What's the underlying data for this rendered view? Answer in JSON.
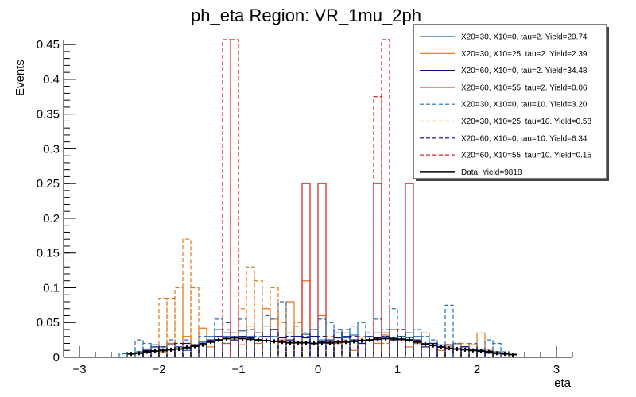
{
  "chart_data": {
    "type": "histogram",
    "title": "ph_eta Region: VR_1mu_2ph",
    "xlabel": "eta",
    "ylabel": "Events",
    "xlim": [
      -3.2,
      3.2
    ],
    "ylim": [
      0,
      0.457
    ],
    "x_ticks": [
      -3,
      -2,
      -1,
      0,
      1,
      2,
      3
    ],
    "y_ticks": [
      0,
      0.05,
      0.1,
      0.15,
      0.2,
      0.25,
      0.3,
      0.35,
      0.4,
      0.45
    ],
    "y_tick_labels": [
      "0",
      "0.05",
      "0.1",
      "0.15",
      "0.2",
      "0.25",
      "0.3",
      "0.35",
      "0.4",
      "0.45"
    ],
    "bin_width": 0.1,
    "series": [
      {
        "name": "X20=30, X10=0, tau=2. Yield=20.74",
        "color": "#1f6fb4",
        "style": "solid",
        "bins": [
          [
            -2.3,
            0.008
          ],
          [
            -2.2,
            0.012
          ],
          [
            -2.1,
            0.018
          ],
          [
            -2.0,
            0.015
          ],
          [
            -1.9,
            0.02
          ],
          [
            -1.8,
            0.012
          ],
          [
            -1.7,
            0.01
          ],
          [
            -1.6,
            0.016
          ],
          [
            -1.5,
            0.022
          ],
          [
            -1.4,
            0.03
          ],
          [
            -1.3,
            0.04
          ],
          [
            -1.2,
            0.03
          ],
          [
            -1.1,
            0.03
          ],
          [
            -1.0,
            0.038
          ],
          [
            -0.9,
            0.03
          ],
          [
            -0.8,
            0.025
          ],
          [
            -0.7,
            0.045
          ],
          [
            -0.6,
            0.03
          ],
          [
            -0.5,
            0.025
          ],
          [
            -0.4,
            0.035
          ],
          [
            -0.3,
            0.03
          ],
          [
            -0.2,
            0.033
          ],
          [
            -0.1,
            0.03
          ],
          [
            0.0,
            0.025
          ],
          [
            0.1,
            0.02
          ],
          [
            0.2,
            0.035
          ],
          [
            0.3,
            0.028
          ],
          [
            0.4,
            0.032
          ],
          [
            0.5,
            0.025
          ],
          [
            0.6,
            0.03
          ],
          [
            0.7,
            0.035
          ],
          [
            0.8,
            0.03
          ],
          [
            0.9,
            0.04
          ],
          [
            1.0,
            0.03
          ],
          [
            1.1,
            0.028
          ],
          [
            1.2,
            0.03
          ],
          [
            1.3,
            0.02
          ],
          [
            1.4,
            0.02
          ],
          [
            1.5,
            0.018
          ],
          [
            1.6,
            0.012
          ],
          [
            1.7,
            0.018
          ],
          [
            1.8,
            0.012
          ],
          [
            1.9,
            0.01
          ],
          [
            2.0,
            0.01
          ],
          [
            2.1,
            0.006
          ],
          [
            2.2,
            0.008
          ]
        ]
      },
      {
        "name": "X20=30, X10=25, tau=2. Yield=2.39",
        "color": "#e8731a",
        "style": "solid",
        "bins": [
          [
            -2.2,
            0.01
          ],
          [
            -2.1,
            0.012
          ],
          [
            -2.0,
            0.008
          ],
          [
            -1.9,
            0.02
          ],
          [
            -1.8,
            0.012
          ],
          [
            -1.7,
            0.03
          ],
          [
            -1.6,
            0.018
          ],
          [
            -1.5,
            0.042
          ],
          [
            -1.4,
            0.015
          ],
          [
            -1.3,
            0.025
          ],
          [
            -1.2,
            0.02
          ],
          [
            -1.1,
            0.035
          ],
          [
            -1.0,
            0.018
          ],
          [
            -0.9,
            0.045
          ],
          [
            -0.8,
            0.02
          ],
          [
            -0.7,
            0.07
          ],
          [
            -0.6,
            0.055
          ],
          [
            -0.5,
            0.025
          ],
          [
            -0.4,
            0.08
          ],
          [
            -0.3,
            0.045
          ],
          [
            -0.2,
            0.11
          ],
          [
            -0.1,
            0.04
          ],
          [
            0.0,
            0.06
          ],
          [
            0.1,
            0.022
          ],
          [
            0.2,
            0.02
          ],
          [
            0.3,
            0.035
          ],
          [
            0.4,
            0.01
          ],
          [
            0.5,
            0.025
          ],
          [
            0.6,
            0.03
          ],
          [
            0.7,
            0.02
          ],
          [
            0.8,
            0.032
          ],
          [
            0.9,
            0.04
          ],
          [
            1.0,
            0.025
          ],
          [
            1.1,
            0.015
          ],
          [
            1.2,
            0.02
          ],
          [
            1.3,
            0.035
          ],
          [
            1.4,
            0.012
          ],
          [
            1.5,
            0.01
          ],
          [
            1.6,
            0.016
          ],
          [
            1.7,
            0.02
          ],
          [
            1.8,
            0.015
          ],
          [
            1.9,
            0.018
          ],
          [
            2.0,
            0.035
          ],
          [
            2.1,
            0.01
          ],
          [
            2.2,
            0.005
          ]
        ]
      },
      {
        "name": "X20=60, X10=0, tau=2. Yield=34.48",
        "color": "#0a0a80",
        "style": "solid",
        "bins": [
          [
            -2.3,
            0.006
          ],
          [
            -2.2,
            0.01
          ],
          [
            -2.1,
            0.015
          ],
          [
            -2.0,
            0.012
          ],
          [
            -1.9,
            0.018
          ],
          [
            -1.8,
            0.015
          ],
          [
            -1.7,
            0.02
          ],
          [
            -1.6,
            0.018
          ],
          [
            -1.5,
            0.02
          ],
          [
            -1.4,
            0.025
          ],
          [
            -1.3,
            0.03
          ],
          [
            -1.2,
            0.035
          ],
          [
            -1.1,
            0.025
          ],
          [
            -1.0,
            0.03
          ],
          [
            -0.9,
            0.028
          ],
          [
            -0.8,
            0.035
          ],
          [
            -0.7,
            0.03
          ],
          [
            -0.6,
            0.04
          ],
          [
            -0.5,
            0.028
          ],
          [
            -0.4,
            0.025
          ],
          [
            -0.3,
            0.03
          ],
          [
            -0.2,
            0.028
          ],
          [
            -0.1,
            0.03
          ],
          [
            0.0,
            0.022
          ],
          [
            0.1,
            0.025
          ],
          [
            0.2,
            0.028
          ],
          [
            0.3,
            0.03
          ],
          [
            0.4,
            0.025
          ],
          [
            0.5,
            0.02
          ],
          [
            0.6,
            0.03
          ],
          [
            0.7,
            0.028
          ],
          [
            0.8,
            0.035
          ],
          [
            0.9,
            0.025
          ],
          [
            1.0,
            0.03
          ],
          [
            1.1,
            0.035
          ],
          [
            1.2,
            0.025
          ],
          [
            1.3,
            0.015
          ],
          [
            1.4,
            0.02
          ],
          [
            1.5,
            0.015
          ],
          [
            1.6,
            0.018
          ],
          [
            1.7,
            0.012
          ],
          [
            1.8,
            0.015
          ],
          [
            1.9,
            0.012
          ],
          [
            2.0,
            0.01
          ],
          [
            2.1,
            0.008
          ],
          [
            2.2,
            0.006
          ]
        ]
      },
      {
        "name": "X20=60, X10=55, tau=2. Yield=0.06",
        "color": "#d81e1e",
        "style": "solid",
        "bins": [
          [
            -0.2,
            0.25
          ],
          [
            0.0,
            0.25
          ],
          [
            0.7,
            0.25
          ],
          [
            1.1,
            0.25
          ]
        ]
      },
      {
        "name": "X20=30, X10=0, tau=10. Yield=3.20",
        "color": "#1f6fb4",
        "style": "dashed",
        "bins": [
          [
            -2.5,
            0.005
          ],
          [
            -2.3,
            0.025
          ],
          [
            -2.2,
            0.02
          ],
          [
            -2.1,
            0.012
          ],
          [
            -2.0,
            0.01
          ],
          [
            -1.9,
            0.025
          ],
          [
            -1.8,
            0.015
          ],
          [
            -1.7,
            0.025
          ],
          [
            -1.6,
            0.018
          ],
          [
            -1.5,
            0.03
          ],
          [
            -1.4,
            0.025
          ],
          [
            -1.3,
            0.055
          ],
          [
            -1.2,
            0.02
          ],
          [
            -1.1,
            0.035
          ],
          [
            -1.0,
            0.055
          ],
          [
            -0.9,
            0.04
          ],
          [
            -0.8,
            0.03
          ],
          [
            -0.7,
            0.06
          ],
          [
            -0.6,
            0.055
          ],
          [
            -0.5,
            0.08
          ],
          [
            -0.4,
            0.03
          ],
          [
            -0.3,
            0.045
          ],
          [
            -0.2,
            0.03
          ],
          [
            -0.1,
            0.04
          ],
          [
            0.0,
            0.055
          ],
          [
            0.1,
            0.05
          ],
          [
            0.2,
            0.035
          ],
          [
            0.3,
            0.04
          ],
          [
            0.4,
            0.045
          ],
          [
            0.5,
            0.05
          ],
          [
            0.6,
            0.03
          ],
          [
            0.7,
            0.055
          ],
          [
            0.8,
            0.04
          ],
          [
            0.9,
            0.07
          ],
          [
            1.0,
            0.03
          ],
          [
            1.1,
            0.035
          ],
          [
            1.2,
            0.04
          ],
          [
            1.3,
            0.03
          ],
          [
            1.4,
            0.025
          ],
          [
            1.5,
            0.015
          ],
          [
            1.6,
            0.075
          ],
          [
            1.7,
            0.02
          ],
          [
            1.8,
            0.012
          ],
          [
            1.9,
            0.02
          ],
          [
            2.0,
            0.01
          ],
          [
            2.1,
            0.025
          ],
          [
            2.2,
            0.02
          ],
          [
            2.3,
            0.008
          ]
        ]
      },
      {
        "name": "X20=30, X10=25, tau=10. Yield=0.58",
        "color": "#e8731a",
        "style": "dashed",
        "bins": [
          [
            -2.0,
            0.085
          ],
          [
            -1.9,
            0.085
          ],
          [
            -1.8,
            0.1
          ],
          [
            -1.7,
            0.17
          ],
          [
            -1.6,
            0.1
          ],
          [
            -1.2,
            0.04
          ],
          [
            -1.0,
            0.07
          ],
          [
            -0.9,
            0.13
          ],
          [
            -0.8,
            0.11
          ],
          [
            -0.6,
            0.1
          ],
          [
            -0.5,
            0.05
          ],
          [
            -0.3,
            0.05
          ],
          [
            0.1,
            0.03
          ],
          [
            0.3,
            0.025
          ],
          [
            0.5,
            0.03
          ],
          [
            0.8,
            0.02
          ],
          [
            1.2,
            0.02
          ],
          [
            1.5,
            0.015
          ],
          [
            1.8,
            0.02
          ]
        ]
      },
      {
        "name": "X20=60, X10=0, tau=10. Yield=6.34",
        "color": "#0a0a80",
        "style": "dashed",
        "bins": [
          [
            -2.2,
            0.01
          ],
          [
            -2.0,
            0.015
          ],
          [
            -1.8,
            0.02
          ],
          [
            -1.6,
            0.018
          ],
          [
            -1.4,
            0.025
          ],
          [
            -1.2,
            0.05
          ],
          [
            -1.0,
            0.03
          ],
          [
            -0.8,
            0.035
          ],
          [
            -0.6,
            0.04
          ],
          [
            -0.4,
            0.03
          ],
          [
            -0.2,
            0.035
          ],
          [
            0.0,
            0.03
          ],
          [
            0.2,
            0.04
          ],
          [
            0.4,
            0.03
          ],
          [
            0.6,
            0.035
          ],
          [
            0.8,
            0.03
          ],
          [
            1.0,
            0.04
          ],
          [
            1.2,
            0.025
          ],
          [
            1.4,
            0.02
          ],
          [
            1.6,
            0.018
          ],
          [
            1.8,
            0.015
          ],
          [
            2.0,
            0.012
          ]
        ]
      },
      {
        "name": "X20=60, X10=55, tau=10. Yield=0.15",
        "color": "#d81e1e",
        "style": "dashed",
        "bins": [
          [
            -1.2,
            0.457
          ],
          [
            -1.1,
            0.457
          ],
          [
            0.7,
            0.375
          ],
          [
            0.8,
            0.457
          ]
        ]
      }
    ],
    "data_series": {
      "name": "Data. Yield=9818",
      "color": "#000000",
      "points": [
        [
          -2.35,
          0.005
        ],
        [
          -2.25,
          0.006
        ],
        [
          -2.15,
          0.008
        ],
        [
          -2.05,
          0.009
        ],
        [
          -1.95,
          0.01
        ],
        [
          -1.85,
          0.011
        ],
        [
          -1.75,
          0.012
        ],
        [
          -1.65,
          0.014
        ],
        [
          -1.55,
          0.016
        ],
        [
          -1.45,
          0.018
        ],
        [
          -1.35,
          0.022
        ],
        [
          -1.25,
          0.025
        ],
        [
          -1.15,
          0.027
        ],
        [
          -1.05,
          0.028
        ],
        [
          -0.95,
          0.027
        ],
        [
          -0.85,
          0.026
        ],
        [
          -0.75,
          0.025
        ],
        [
          -0.65,
          0.024
        ],
        [
          -0.55,
          0.023
        ],
        [
          -0.45,
          0.022
        ],
        [
          -0.35,
          0.021
        ],
        [
          -0.25,
          0.021
        ],
        [
          -0.15,
          0.021
        ],
        [
          -0.05,
          0.02
        ],
        [
          0.05,
          0.021
        ],
        [
          0.15,
          0.021
        ],
        [
          0.25,
          0.022
        ],
        [
          0.35,
          0.022
        ],
        [
          0.45,
          0.023
        ],
        [
          0.55,
          0.024
        ],
        [
          0.65,
          0.025
        ],
        [
          0.75,
          0.026
        ],
        [
          0.85,
          0.027
        ],
        [
          0.95,
          0.027
        ],
        [
          1.05,
          0.026
        ],
        [
          1.15,
          0.025
        ],
        [
          1.25,
          0.022
        ],
        [
          1.35,
          0.019
        ],
        [
          1.45,
          0.017
        ],
        [
          1.55,
          0.015
        ],
        [
          1.65,
          0.013
        ],
        [
          1.75,
          0.012
        ],
        [
          1.85,
          0.011
        ],
        [
          1.95,
          0.01
        ],
        [
          2.05,
          0.009
        ],
        [
          2.15,
          0.008
        ],
        [
          2.25,
          0.006
        ],
        [
          2.35,
          0.005
        ],
        [
          2.45,
          0.004
        ]
      ]
    }
  }
}
